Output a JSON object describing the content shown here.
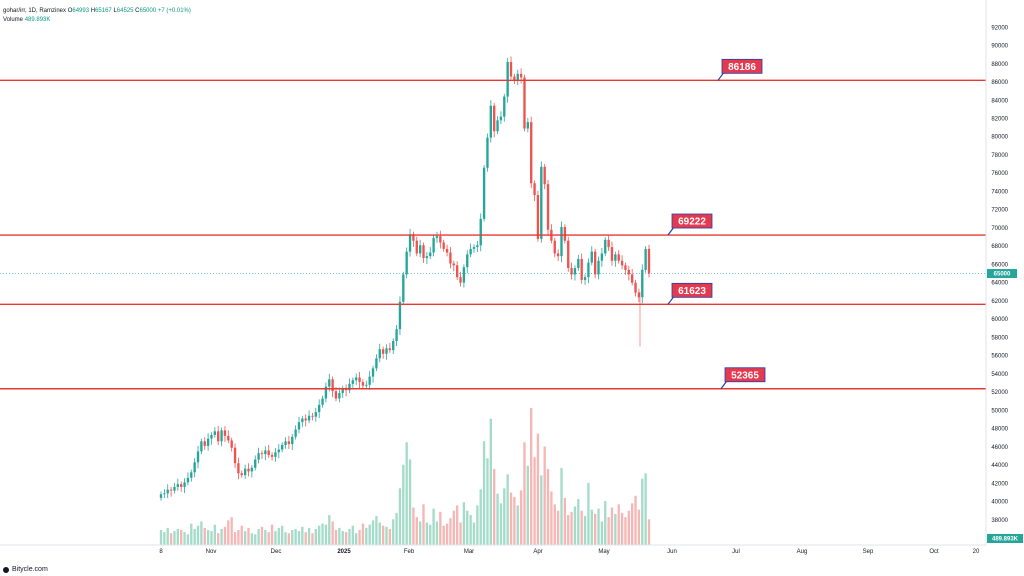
{
  "header": {
    "symbol_line": "gohar/irr, 1D, Ramzinex",
    "ohlc": {
      "o_label": "O",
      "o": "64993",
      "h_label": "H",
      "h": "65167",
      "l_label": "L",
      "l": "64525",
      "c_label": "C",
      "c": "65000",
      "change": "+7 (+0.01%)"
    },
    "volume_label": "Volume",
    "volume_value": "489.893K"
  },
  "footer": {
    "brand": "Bitycle.com"
  },
  "colors": {
    "up": "#26a69a",
    "down": "#ef5350",
    "level_line": "#e53935",
    "label_bg": "#e53950",
    "label_border": "#1e3ea8",
    "volume_up": "#a5dbc9",
    "volume_down": "#f5b7b5"
  },
  "chart_data": {
    "type": "candlestick",
    "y_ticks": [
      38000,
      40000,
      42000,
      44000,
      46000,
      48000,
      50000,
      52000,
      54000,
      56000,
      58000,
      60000,
      62000,
      64000,
      66000,
      68000,
      70000,
      72000,
      74000,
      76000,
      78000,
      80000,
      82000,
      84000,
      86000,
      88000,
      90000,
      92000
    ],
    "ylim": [
      36000,
      92800
    ],
    "x_labels": [
      "8",
      "Nov",
      "Dec",
      "2025",
      "Feb",
      "Mar",
      "Apr",
      "May",
      "Jun",
      "Jul",
      "Aug",
      "Sep",
      "Oct",
      "20"
    ],
    "levels": [
      {
        "value": 86186,
        "label": "86186"
      },
      {
        "value": 69222,
        "label": "69222"
      },
      {
        "value": 61623,
        "label": "61623"
      },
      {
        "value": 52365,
        "label": "52365"
      }
    ],
    "last_price": 65000,
    "last_price_label": "65000",
    "volume_badge": "489.893K",
    "closes": [
      40800,
      40900,
      41300,
      41200,
      41600,
      41900,
      41600,
      42100,
      42600,
      43200,
      44300,
      45500,
      46600,
      46100,
      46900,
      47300,
      47700,
      46600,
      47800,
      47200,
      46700,
      45900,
      44200,
      43100,
      42900,
      43600,
      43300,
      43700,
      44600,
      45300,
      45200,
      45600,
      45100,
      44900,
      45400,
      45700,
      46200,
      46600,
      46300,
      47100,
      47900,
      48700,
      49100,
      48900,
      49400,
      49300,
      49800,
      50600,
      51300,
      52600,
      53400,
      52100,
      51300,
      51900,
      52400,
      52200,
      52900,
      53300,
      53600,
      53100,
      52700,
      52800,
      53700,
      54600,
      55700,
      56700,
      56200,
      56800,
      56600,
      57600,
      58900,
      61900,
      64900,
      67400,
      69300,
      68600,
      67200,
      68100,
      66700,
      66900,
      67300,
      68900,
      69100,
      68400,
      67700,
      67300,
      66100,
      65900,
      64600,
      64000,
      65700,
      67100,
      67700,
      67900,
      68100,
      71000,
      76600,
      79900,
      83400,
      80600,
      81800,
      82200,
      84400,
      88200,
      86600,
      86200,
      86900,
      86500,
      80900,
      81600,
      74900,
      73600,
      68800,
      76700,
      74800,
      69800,
      68600,
      67200,
      66900,
      70100,
      68600,
      65600,
      64900,
      65600,
      66600,
      64300,
      64600,
      66200,
      67400,
      64900,
      66400,
      67200,
      68700,
      67900,
      66400,
      67100,
      66400,
      65900,
      65400,
      64900,
      64000,
      62900,
      62400,
      65400,
      67700,
      65000
    ],
    "opens_note": "",
    "volumes": [
      1.4,
      1.2,
      1.6,
      1.1,
      1.3,
      1.5,
      1.4,
      1.2,
      1.0,
      2.0,
      1.5,
      1.8,
      2.2,
      1.6,
      1.4,
      1.3,
      1.9,
      1.1,
      1.5,
      1.7,
      2.3,
      2.6,
      1.2,
      1.4,
      1.8,
      1.3,
      1.6,
      1.1,
      1.0,
      1.5,
      1.7,
      1.4,
      1.2,
      1.9,
      1.3,
      1.6,
      1.8,
      1.2,
      1.1,
      1.4,
      1.5,
      1.3,
      1.7,
      1.2,
      1.6,
      1.1,
      1.5,
      1.8,
      2.0,
      1.9,
      2.8,
      2.2,
      1.4,
      1.6,
      1.3,
      1.2,
      1.5,
      1.8,
      1.1,
      1.4,
      2.0,
      1.6,
      1.9,
      2.3,
      2.7,
      2.1,
      1.8,
      1.7,
      1.5,
      2.4,
      3.0,
      5.3,
      7.5,
      9.6,
      8.0,
      3.5,
      2.6,
      2.2,
      3.8,
      2.1,
      1.9,
      3.4,
      2.2,
      3.1,
      1.8,
      2.0,
      2.5,
      3.2,
      3.7,
      2.1,
      4.0,
      3.2,
      2.8,
      2.1,
      3.7,
      5.2,
      9.7,
      8.1,
      11.8,
      7.1,
      4.8,
      3.9,
      5.3,
      6.6,
      4.9,
      4.5,
      3.7,
      5.1,
      9.6,
      7.4,
      12.8,
      8.2,
      10.4,
      6.5,
      9.2,
      7.1,
      5.0,
      3.8,
      3.2,
      7.2,
      4.4,
      2.8,
      3.1,
      3.6,
      4.3,
      3.2,
      2.7,
      5.8,
      3.3,
      2.9,
      3.4,
      2.2,
      4.1,
      2.6,
      3.5,
      2.9,
      3.8,
      3.0,
      2.6,
      3.2,
      3.9,
      4.6,
      3.3,
      6.2,
      6.7,
      2.4
    ]
  }
}
